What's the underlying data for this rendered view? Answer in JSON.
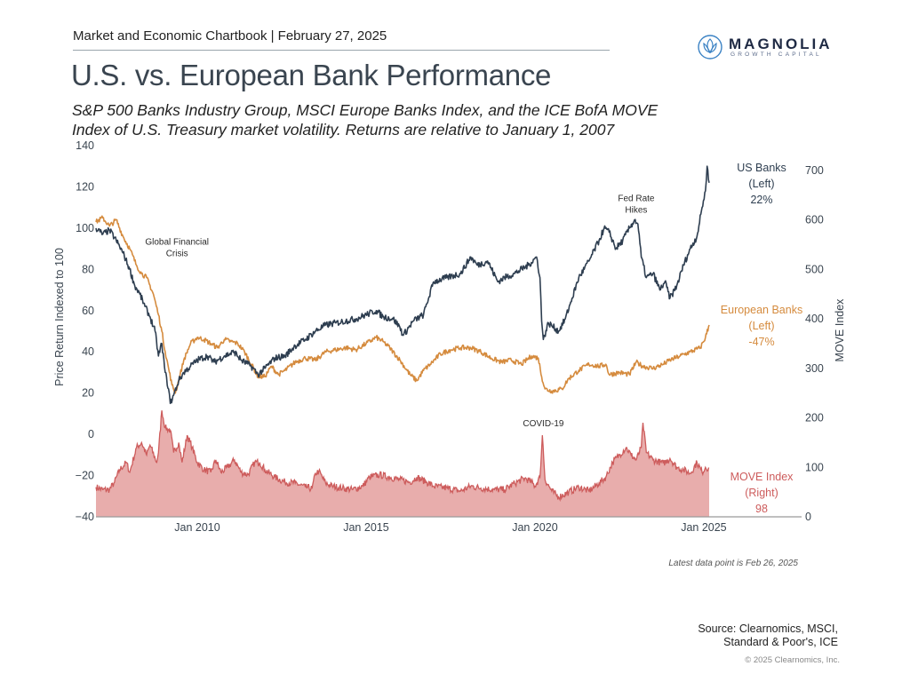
{
  "header": {
    "chartbook_line": "Market and Economic Chartbook | February 27, 2025",
    "title": "U.S. vs. European Bank Performance",
    "subtitle_line1": "S&P 500 Banks Industry Group, MSCI Europe Banks Index, and the ICE BofA MOVE",
    "subtitle_line2": "Index of U.S. Treasury market volatility. Returns are relative to January 1, 2007"
  },
  "logo": {
    "icon": "magnolia-flower-icon",
    "name": "MAGNOLIA",
    "tagline": "GROWTH CAPITAL",
    "color": "#1f2a44",
    "icon_color": "#3b82c4"
  },
  "footer": {
    "latest_note": "Latest data point is Feb 26, 2025",
    "source_line1": "Source: Clearnomics, MSCI,",
    "source_line2": "Standard & Poor's, ICE",
    "copyright": "© 2025 Clearnomics, Inc."
  },
  "chart_data": {
    "type": "line",
    "title": "U.S. vs. European Bank Performance",
    "xlabel": "",
    "ylabel": "Price Return Indexed to 100",
    "y2label": "MOVE Index",
    "xlim": [
      2007.0,
      2025.16
    ],
    "ylim": [
      -40,
      140
    ],
    "y2lim": [
      0,
      700
    ],
    "grid": false,
    "x_ticks": [
      {
        "value": 2010.0,
        "label": "Jan 2010"
      },
      {
        "value": 2015.0,
        "label": "Jan 2015"
      },
      {
        "value": 2020.0,
        "label": "Jan 2020"
      },
      {
        "value": 2025.0,
        "label": "Jan 2025"
      }
    ],
    "y_ticks": [
      "140",
      "120",
      "100",
      "80",
      "60",
      "40",
      "20",
      "0",
      "−20",
      "−40"
    ],
    "y_tick_values": [
      140,
      120,
      100,
      80,
      60,
      40,
      20,
      0,
      -20,
      -40
    ],
    "y2_ticks": [
      "700",
      "600",
      "500",
      "400",
      "300",
      "200",
      "100",
      "0"
    ],
    "y2_tick_values": [
      700,
      600,
      500,
      400,
      300,
      200,
      100,
      0
    ],
    "annotations": [
      {
        "text_lines": [
          "Global Financial",
          "Crisis"
        ],
        "x": 2009.4,
        "y": 92
      },
      {
        "text_lines": [
          "COVID-19"
        ],
        "x": 2020.25,
        "y": 4
      },
      {
        "text_lines": [
          "Fed Rate",
          "Hikes"
        ],
        "x": 2023.0,
        "y": 113
      }
    ],
    "series": [
      {
        "name": "US Banks",
        "axis": "left",
        "color": "#2e3e50",
        "legend_lines": [
          "US Banks",
          "(Left)",
          "22%"
        ],
        "legend_y": 118,
        "points": [
          [
            2007.0,
            100
          ],
          [
            2007.2,
            97
          ],
          [
            2007.4,
            99
          ],
          [
            2007.6,
            94
          ],
          [
            2007.8,
            88
          ],
          [
            2008.0,
            80
          ],
          [
            2008.15,
            72
          ],
          [
            2008.3,
            68
          ],
          [
            2008.45,
            62
          ],
          [
            2008.6,
            57
          ],
          [
            2008.75,
            50
          ],
          [
            2008.85,
            38
          ],
          [
            2008.95,
            44
          ],
          [
            2009.05,
            30
          ],
          [
            2009.15,
            22
          ],
          [
            2009.2,
            15
          ],
          [
            2009.3,
            19
          ],
          [
            2009.45,
            26
          ],
          [
            2009.6,
            30
          ],
          [
            2009.8,
            33
          ],
          [
            2010.0,
            36
          ],
          [
            2010.3,
            38
          ],
          [
            2010.5,
            35
          ],
          [
            2010.8,
            38
          ],
          [
            2011.1,
            40
          ],
          [
            2011.3,
            36
          ],
          [
            2011.6,
            33
          ],
          [
            2011.8,
            29
          ],
          [
            2012.0,
            32
          ],
          [
            2012.3,
            37
          ],
          [
            2012.6,
            38
          ],
          [
            2012.9,
            43
          ],
          [
            2013.2,
            46
          ],
          [
            2013.5,
            50
          ],
          [
            2013.8,
            53
          ],
          [
            2014.1,
            54
          ],
          [
            2014.4,
            55
          ],
          [
            2014.7,
            56
          ],
          [
            2015.0,
            58
          ],
          [
            2015.3,
            60
          ],
          [
            2015.5,
            57
          ],
          [
            2015.8,
            56
          ],
          [
            2016.0,
            52
          ],
          [
            2016.1,
            48
          ],
          [
            2016.4,
            55
          ],
          [
            2016.7,
            58
          ],
          [
            2016.85,
            66
          ],
          [
            2017.0,
            74
          ],
          [
            2017.4,
            76
          ],
          [
            2017.8,
            78
          ],
          [
            2018.1,
            86
          ],
          [
            2018.3,
            82
          ],
          [
            2018.6,
            84
          ],
          [
            2018.9,
            74
          ],
          [
            2019.1,
            76
          ],
          [
            2019.4,
            78
          ],
          [
            2019.8,
            82
          ],
          [
            2020.05,
            86
          ],
          [
            2020.15,
            76
          ],
          [
            2020.2,
            55
          ],
          [
            2020.25,
            46
          ],
          [
            2020.4,
            54
          ],
          [
            2020.7,
            50
          ],
          [
            2020.9,
            56
          ],
          [
            2021.1,
            66
          ],
          [
            2021.3,
            76
          ],
          [
            2021.6,
            84
          ],
          [
            2021.9,
            94
          ],
          [
            2022.05,
            100
          ],
          [
            2022.2,
            98
          ],
          [
            2022.4,
            90
          ],
          [
            2022.6,
            94
          ],
          [
            2022.8,
            100
          ],
          [
            2022.95,
            104
          ],
          [
            2023.05,
            102
          ],
          [
            2023.15,
            86
          ],
          [
            2023.3,
            76
          ],
          [
            2023.5,
            78
          ],
          [
            2023.7,
            70
          ],
          [
            2023.85,
            74
          ],
          [
            2024.0,
            66
          ],
          [
            2024.2,
            72
          ],
          [
            2024.4,
            82
          ],
          [
            2024.6,
            90
          ],
          [
            2024.8,
            96
          ],
          [
            2024.95,
            110
          ],
          [
            2025.05,
            118
          ],
          [
            2025.1,
            130
          ],
          [
            2025.16,
            122
          ]
        ]
      },
      {
        "name": "European Banks",
        "axis": "left",
        "color": "#d58b3e",
        "legend_lines": [
          "European Banks",
          "(Left)",
          "-47%"
        ],
        "legend_y": 59,
        "points": [
          [
            2007.0,
            103
          ],
          [
            2007.2,
            105
          ],
          [
            2007.4,
            101
          ],
          [
            2007.6,
            104
          ],
          [
            2007.8,
            96
          ],
          [
            2008.0,
            90
          ],
          [
            2008.2,
            82
          ],
          [
            2008.35,
            78
          ],
          [
            2008.5,
            76
          ],
          [
            2008.7,
            68
          ],
          [
            2008.85,
            58
          ],
          [
            2008.95,
            50
          ],
          [
            2009.05,
            40
          ],
          [
            2009.15,
            32
          ],
          [
            2009.25,
            24
          ],
          [
            2009.35,
            20
          ],
          [
            2009.45,
            26
          ],
          [
            2009.6,
            36
          ],
          [
            2009.8,
            44
          ],
          [
            2010.0,
            47
          ],
          [
            2010.2,
            46
          ],
          [
            2010.4,
            44
          ],
          [
            2010.6,
            42
          ],
          [
            2010.8,
            46
          ],
          [
            2011.0,
            45
          ],
          [
            2011.2,
            44
          ],
          [
            2011.4,
            40
          ],
          [
            2011.6,
            34
          ],
          [
            2011.8,
            28
          ],
          [
            2012.0,
            28
          ],
          [
            2012.2,
            33
          ],
          [
            2012.4,
            29
          ],
          [
            2012.6,
            31
          ],
          [
            2012.9,
            35
          ],
          [
            2013.2,
            37
          ],
          [
            2013.5,
            36
          ],
          [
            2013.8,
            40
          ],
          [
            2014.1,
            41
          ],
          [
            2014.4,
            42
          ],
          [
            2014.7,
            41
          ],
          [
            2015.0,
            44
          ],
          [
            2015.3,
            47
          ],
          [
            2015.5,
            45
          ],
          [
            2015.7,
            42
          ],
          [
            2016.0,
            36
          ],
          [
            2016.3,
            29
          ],
          [
            2016.5,
            26
          ],
          [
            2016.7,
            31
          ],
          [
            2016.9,
            34
          ],
          [
            2017.2,
            39
          ],
          [
            2017.5,
            41
          ],
          [
            2017.8,
            42
          ],
          [
            2018.1,
            42
          ],
          [
            2018.4,
            40
          ],
          [
            2018.7,
            37
          ],
          [
            2019.0,
            35
          ],
          [
            2019.3,
            36
          ],
          [
            2019.6,
            34
          ],
          [
            2019.9,
            38
          ],
          [
            2020.1,
            37
          ],
          [
            2020.2,
            28
          ],
          [
            2020.3,
            22
          ],
          [
            2020.5,
            21
          ],
          [
            2020.8,
            22
          ],
          [
            2021.0,
            27
          ],
          [
            2021.3,
            31
          ],
          [
            2021.6,
            34
          ],
          [
            2021.9,
            33
          ],
          [
            2022.1,
            34
          ],
          [
            2022.2,
            29
          ],
          [
            2022.5,
            30
          ],
          [
            2022.8,
            29
          ],
          [
            2023.0,
            35
          ],
          [
            2023.2,
            33
          ],
          [
            2023.5,
            32
          ],
          [
            2023.8,
            34
          ],
          [
            2024.0,
            36
          ],
          [
            2024.3,
            38
          ],
          [
            2024.6,
            40
          ],
          [
            2024.9,
            42
          ],
          [
            2025.05,
            47
          ],
          [
            2025.16,
            53
          ]
        ]
      },
      {
        "name": "MOVE Index",
        "axis": "right",
        "color": "#cd5c5c",
        "fill": "#e8adac",
        "legend_lines": [
          "MOVE Index",
          "(Right)",
          "98"
        ],
        "legend_y": 57,
        "points": [
          [
            2007.0,
            60
          ],
          [
            2007.2,
            55
          ],
          [
            2007.4,
            55
          ],
          [
            2007.55,
            70
          ],
          [
            2007.7,
            95
          ],
          [
            2007.9,
            110
          ],
          [
            2008.0,
            90
          ],
          [
            2008.2,
            140
          ],
          [
            2008.35,
            150
          ],
          [
            2008.5,
            125
          ],
          [
            2008.6,
            145
          ],
          [
            2008.8,
            110
          ],
          [
            2008.85,
            130
          ],
          [
            2008.95,
            215
          ],
          [
            2009.05,
            180
          ],
          [
            2009.2,
            175
          ],
          [
            2009.3,
            130
          ],
          [
            2009.45,
            150
          ],
          [
            2009.55,
            110
          ],
          [
            2009.7,
            165
          ],
          [
            2009.85,
            140
          ],
          [
            2010.0,
            110
          ],
          [
            2010.2,
            95
          ],
          [
            2010.4,
            90
          ],
          [
            2010.55,
            115
          ],
          [
            2010.7,
            90
          ],
          [
            2010.9,
            100
          ],
          [
            2011.1,
            115
          ],
          [
            2011.3,
            90
          ],
          [
            2011.5,
            85
          ],
          [
            2011.7,
            110
          ],
          [
            2011.85,
            110
          ],
          [
            2012.0,
            95
          ],
          [
            2012.3,
            80
          ],
          [
            2012.6,
            70
          ],
          [
            2012.9,
            68
          ],
          [
            2013.2,
            60
          ],
          [
            2013.4,
            57
          ],
          [
            2013.5,
            88
          ],
          [
            2013.6,
            92
          ],
          [
            2013.8,
            68
          ],
          [
            2014.0,
            62
          ],
          [
            2014.3,
            58
          ],
          [
            2014.6,
            55
          ],
          [
            2014.9,
            62
          ],
          [
            2015.1,
            80
          ],
          [
            2015.4,
            85
          ],
          [
            2015.7,
            80
          ],
          [
            2016.0,
            75
          ],
          [
            2016.3,
            70
          ],
          [
            2016.5,
            80
          ],
          [
            2016.8,
            70
          ],
          [
            2017.0,
            62
          ],
          [
            2017.4,
            58
          ],
          [
            2017.8,
            52
          ],
          [
            2018.1,
            62
          ],
          [
            2018.4,
            58
          ],
          [
            2018.8,
            55
          ],
          [
            2019.1,
            55
          ],
          [
            2019.4,
            68
          ],
          [
            2019.7,
            78
          ],
          [
            2019.9,
            70
          ],
          [
            2020.0,
            62
          ],
          [
            2020.15,
            80
          ],
          [
            2020.22,
            165
          ],
          [
            2020.3,
            75
          ],
          [
            2020.5,
            52
          ],
          [
            2020.7,
            40
          ],
          [
            2021.0,
            50
          ],
          [
            2021.3,
            60
          ],
          [
            2021.6,
            52
          ],
          [
            2021.9,
            68
          ],
          [
            2022.1,
            80
          ],
          [
            2022.3,
            110
          ],
          [
            2022.5,
            125
          ],
          [
            2022.7,
            140
          ],
          [
            2022.85,
            125
          ],
          [
            2023.0,
            115
          ],
          [
            2023.15,
            140
          ],
          [
            2023.2,
            190
          ],
          [
            2023.3,
            130
          ],
          [
            2023.5,
            115
          ],
          [
            2023.8,
            108
          ],
          [
            2024.0,
            118
          ],
          [
            2024.2,
            100
          ],
          [
            2024.4,
            95
          ],
          [
            2024.6,
            88
          ],
          [
            2024.8,
            110
          ],
          [
            2024.95,
            90
          ],
          [
            2025.05,
            100
          ],
          [
            2025.16,
            98
          ]
        ]
      }
    ]
  }
}
